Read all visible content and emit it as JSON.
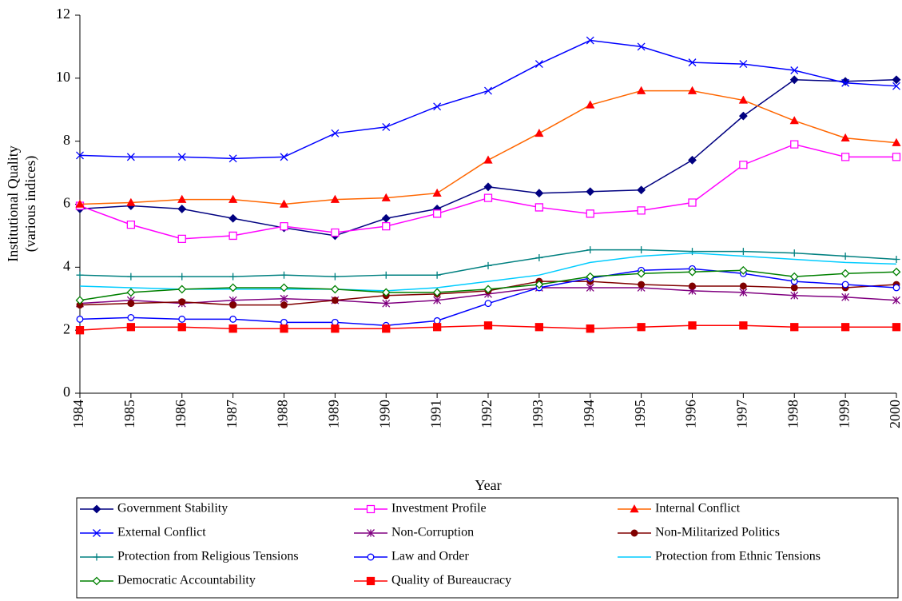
{
  "chart_data": {
    "type": "line",
    "xlabel": "Year",
    "ylabel": [
      "Institutional Quality",
      "(various indices)"
    ],
    "x": [
      1984,
      1985,
      1986,
      1987,
      1988,
      1989,
      1990,
      1991,
      1992,
      1993,
      1994,
      1995,
      1996,
      1997,
      1998,
      1999,
      2000
    ],
    "xlim": [
      1984,
      2000
    ],
    "xticks": [
      1984,
      1985,
      1986,
      1987,
      1988,
      1989,
      1990,
      1991,
      1992,
      1993,
      1994,
      1995,
      1996,
      1997,
      1998,
      1999,
      2000
    ],
    "ylim": [
      0,
      12
    ],
    "yticks": [
      0,
      2,
      4,
      6,
      8,
      10,
      12
    ],
    "grid": false,
    "legend": "bottom",
    "series": [
      {
        "name": "Government Stability",
        "color": "#000080",
        "marker": "diamond",
        "fill": true,
        "values": [
          5.85,
          5.95,
          5.85,
          5.55,
          5.25,
          5.0,
          5.55,
          5.85,
          6.55,
          6.35,
          6.4,
          6.45,
          7.4,
          8.8,
          9.95,
          9.9,
          9.95
        ]
      },
      {
        "name": "Investment Profile",
        "color": "#ff00ff",
        "marker": "square",
        "fill": false,
        "values": [
          5.95,
          5.35,
          4.9,
          5.0,
          5.3,
          5.1,
          5.3,
          5.7,
          6.2,
          5.9,
          5.7,
          5.8,
          6.05,
          7.25,
          7.9,
          7.5,
          7.5
        ]
      },
      {
        "name": "Internal Conflict",
        "color": "#ff6600",
        "marker": "triangle",
        "fill": true,
        "values": [
          6.0,
          6.05,
          6.15,
          6.15,
          6.0,
          6.15,
          6.2,
          6.35,
          7.4,
          8.25,
          9.15,
          9.6,
          9.6,
          9.3,
          8.65,
          8.1,
          7.95
        ]
      },
      {
        "name": "External Conflict",
        "color": "#0000ff",
        "marker": "x",
        "fill": false,
        "values": [
          7.55,
          7.5,
          7.5,
          7.45,
          7.5,
          8.25,
          8.45,
          9.1,
          9.6,
          10.45,
          11.2,
          11.0,
          10.5,
          10.45,
          10.25,
          9.85,
          9.75
        ]
      },
      {
        "name": "Non-Corruption",
        "color": "#800080",
        "marker": "asterisk",
        "fill": false,
        "values": [
          2.85,
          2.95,
          2.85,
          2.95,
          3.0,
          2.95,
          2.85,
          2.95,
          3.15,
          3.35,
          3.35,
          3.35,
          3.25,
          3.2,
          3.1,
          3.05,
          2.95
        ]
      },
      {
        "name": "Non-Militarized Politics",
        "color": "#800000",
        "marker": "circle",
        "fill": true,
        "values": [
          2.8,
          2.85,
          2.9,
          2.8,
          2.8,
          2.95,
          3.1,
          3.15,
          3.25,
          3.55,
          3.55,
          3.45,
          3.4,
          3.4,
          3.35,
          3.35,
          3.45
        ]
      },
      {
        "name": "Protection from Religious Tensions",
        "color": "#008080",
        "marker": "plus",
        "fill": false,
        "values": [
          3.75,
          3.7,
          3.7,
          3.7,
          3.75,
          3.7,
          3.75,
          3.75,
          4.05,
          4.3,
          4.55,
          4.55,
          4.5,
          4.5,
          4.45,
          4.35,
          4.25
        ]
      },
      {
        "name": "Law and Order",
        "color": "#0000ff",
        "marker": "circle",
        "fill": false,
        "values": [
          2.35,
          2.4,
          2.35,
          2.35,
          2.25,
          2.25,
          2.15,
          2.3,
          2.85,
          3.35,
          3.65,
          3.9,
          3.95,
          3.8,
          3.55,
          3.45,
          3.35
        ]
      },
      {
        "name": "Protection from Ethnic Tensions",
        "color": "#00ccff",
        "marker": "none",
        "fill": false,
        "values": [
          3.4,
          3.35,
          3.3,
          3.3,
          3.3,
          3.3,
          3.25,
          3.35,
          3.55,
          3.75,
          4.15,
          4.35,
          4.45,
          4.35,
          4.25,
          4.15,
          4.1
        ]
      },
      {
        "name": "Democratic Accountability",
        "color": "#008000",
        "marker": "diamond",
        "fill": false,
        "values": [
          2.95,
          3.2,
          3.3,
          3.35,
          3.35,
          3.3,
          3.2,
          3.2,
          3.3,
          3.45,
          3.7,
          3.8,
          3.85,
          3.9,
          3.7,
          3.8,
          3.85
        ]
      },
      {
        "name": "Quality of Bureaucracy",
        "color": "#ff0000",
        "marker": "square",
        "fill": true,
        "values": [
          2.0,
          2.1,
          2.1,
          2.05,
          2.05,
          2.05,
          2.05,
          2.1,
          2.15,
          2.1,
          2.05,
          2.1,
          2.15,
          2.15,
          2.1,
          2.1,
          2.1
        ]
      }
    ]
  }
}
